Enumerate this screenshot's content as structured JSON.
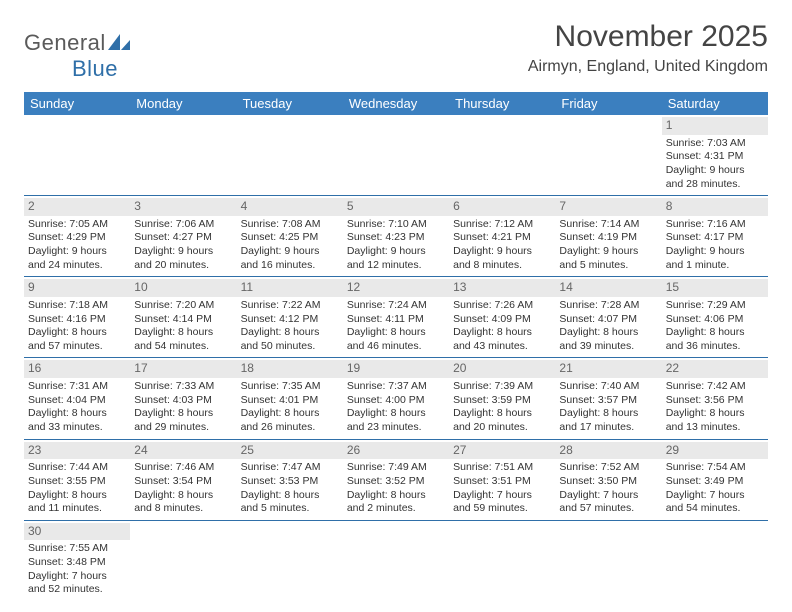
{
  "logo": {
    "general": "General",
    "blue": "Blue"
  },
  "header": {
    "title": "November 2025",
    "location": "Airmyn, England, United Kingdom"
  },
  "colors": {
    "header_bg": "#3b7fbf",
    "header_text": "#ffffff",
    "rule": "#2f6fa8",
    "daynum_bg": "#e9e9e9",
    "text": "#333333",
    "logo_gray": "#5a5a5a",
    "logo_blue": "#2f6fa8"
  },
  "weekdays": [
    "Sunday",
    "Monday",
    "Tuesday",
    "Wednesday",
    "Thursday",
    "Friday",
    "Saturday"
  ],
  "weeks": [
    [
      {
        "n": "",
        "sr": "",
        "ss": "",
        "dl": ""
      },
      {
        "n": "",
        "sr": "",
        "ss": "",
        "dl": ""
      },
      {
        "n": "",
        "sr": "",
        "ss": "",
        "dl": ""
      },
      {
        "n": "",
        "sr": "",
        "ss": "",
        "dl": ""
      },
      {
        "n": "",
        "sr": "",
        "ss": "",
        "dl": ""
      },
      {
        "n": "",
        "sr": "",
        "ss": "",
        "dl": ""
      },
      {
        "n": "1",
        "sr": "Sunrise: 7:03 AM",
        "ss": "Sunset: 4:31 PM",
        "dl": "Daylight: 9 hours and 28 minutes."
      }
    ],
    [
      {
        "n": "2",
        "sr": "Sunrise: 7:05 AM",
        "ss": "Sunset: 4:29 PM",
        "dl": "Daylight: 9 hours and 24 minutes."
      },
      {
        "n": "3",
        "sr": "Sunrise: 7:06 AM",
        "ss": "Sunset: 4:27 PM",
        "dl": "Daylight: 9 hours and 20 minutes."
      },
      {
        "n": "4",
        "sr": "Sunrise: 7:08 AM",
        "ss": "Sunset: 4:25 PM",
        "dl": "Daylight: 9 hours and 16 minutes."
      },
      {
        "n": "5",
        "sr": "Sunrise: 7:10 AM",
        "ss": "Sunset: 4:23 PM",
        "dl": "Daylight: 9 hours and 12 minutes."
      },
      {
        "n": "6",
        "sr": "Sunrise: 7:12 AM",
        "ss": "Sunset: 4:21 PM",
        "dl": "Daylight: 9 hours and 8 minutes."
      },
      {
        "n": "7",
        "sr": "Sunrise: 7:14 AM",
        "ss": "Sunset: 4:19 PM",
        "dl": "Daylight: 9 hours and 5 minutes."
      },
      {
        "n": "8",
        "sr": "Sunrise: 7:16 AM",
        "ss": "Sunset: 4:17 PM",
        "dl": "Daylight: 9 hours and 1 minute."
      }
    ],
    [
      {
        "n": "9",
        "sr": "Sunrise: 7:18 AM",
        "ss": "Sunset: 4:16 PM",
        "dl": "Daylight: 8 hours and 57 minutes."
      },
      {
        "n": "10",
        "sr": "Sunrise: 7:20 AM",
        "ss": "Sunset: 4:14 PM",
        "dl": "Daylight: 8 hours and 54 minutes."
      },
      {
        "n": "11",
        "sr": "Sunrise: 7:22 AM",
        "ss": "Sunset: 4:12 PM",
        "dl": "Daylight: 8 hours and 50 minutes."
      },
      {
        "n": "12",
        "sr": "Sunrise: 7:24 AM",
        "ss": "Sunset: 4:11 PM",
        "dl": "Daylight: 8 hours and 46 minutes."
      },
      {
        "n": "13",
        "sr": "Sunrise: 7:26 AM",
        "ss": "Sunset: 4:09 PM",
        "dl": "Daylight: 8 hours and 43 minutes."
      },
      {
        "n": "14",
        "sr": "Sunrise: 7:28 AM",
        "ss": "Sunset: 4:07 PM",
        "dl": "Daylight: 8 hours and 39 minutes."
      },
      {
        "n": "15",
        "sr": "Sunrise: 7:29 AM",
        "ss": "Sunset: 4:06 PM",
        "dl": "Daylight: 8 hours and 36 minutes."
      }
    ],
    [
      {
        "n": "16",
        "sr": "Sunrise: 7:31 AM",
        "ss": "Sunset: 4:04 PM",
        "dl": "Daylight: 8 hours and 33 minutes."
      },
      {
        "n": "17",
        "sr": "Sunrise: 7:33 AM",
        "ss": "Sunset: 4:03 PM",
        "dl": "Daylight: 8 hours and 29 minutes."
      },
      {
        "n": "18",
        "sr": "Sunrise: 7:35 AM",
        "ss": "Sunset: 4:01 PM",
        "dl": "Daylight: 8 hours and 26 minutes."
      },
      {
        "n": "19",
        "sr": "Sunrise: 7:37 AM",
        "ss": "Sunset: 4:00 PM",
        "dl": "Daylight: 8 hours and 23 minutes."
      },
      {
        "n": "20",
        "sr": "Sunrise: 7:39 AM",
        "ss": "Sunset: 3:59 PM",
        "dl": "Daylight: 8 hours and 20 minutes."
      },
      {
        "n": "21",
        "sr": "Sunrise: 7:40 AM",
        "ss": "Sunset: 3:57 PM",
        "dl": "Daylight: 8 hours and 17 minutes."
      },
      {
        "n": "22",
        "sr": "Sunrise: 7:42 AM",
        "ss": "Sunset: 3:56 PM",
        "dl": "Daylight: 8 hours and 13 minutes."
      }
    ],
    [
      {
        "n": "23",
        "sr": "Sunrise: 7:44 AM",
        "ss": "Sunset: 3:55 PM",
        "dl": "Daylight: 8 hours and 11 minutes."
      },
      {
        "n": "24",
        "sr": "Sunrise: 7:46 AM",
        "ss": "Sunset: 3:54 PM",
        "dl": "Daylight: 8 hours and 8 minutes."
      },
      {
        "n": "25",
        "sr": "Sunrise: 7:47 AM",
        "ss": "Sunset: 3:53 PM",
        "dl": "Daylight: 8 hours and 5 minutes."
      },
      {
        "n": "26",
        "sr": "Sunrise: 7:49 AM",
        "ss": "Sunset: 3:52 PM",
        "dl": "Daylight: 8 hours and 2 minutes."
      },
      {
        "n": "27",
        "sr": "Sunrise: 7:51 AM",
        "ss": "Sunset: 3:51 PM",
        "dl": "Daylight: 7 hours and 59 minutes."
      },
      {
        "n": "28",
        "sr": "Sunrise: 7:52 AM",
        "ss": "Sunset: 3:50 PM",
        "dl": "Daylight: 7 hours and 57 minutes."
      },
      {
        "n": "29",
        "sr": "Sunrise: 7:54 AM",
        "ss": "Sunset: 3:49 PM",
        "dl": "Daylight: 7 hours and 54 minutes."
      }
    ],
    [
      {
        "n": "30",
        "sr": "Sunrise: 7:55 AM",
        "ss": "Sunset: 3:48 PM",
        "dl": "Daylight: 7 hours and 52 minutes."
      },
      {
        "n": "",
        "sr": "",
        "ss": "",
        "dl": ""
      },
      {
        "n": "",
        "sr": "",
        "ss": "",
        "dl": ""
      },
      {
        "n": "",
        "sr": "",
        "ss": "",
        "dl": ""
      },
      {
        "n": "",
        "sr": "",
        "ss": "",
        "dl": ""
      },
      {
        "n": "",
        "sr": "",
        "ss": "",
        "dl": ""
      },
      {
        "n": "",
        "sr": "",
        "ss": "",
        "dl": ""
      }
    ]
  ]
}
